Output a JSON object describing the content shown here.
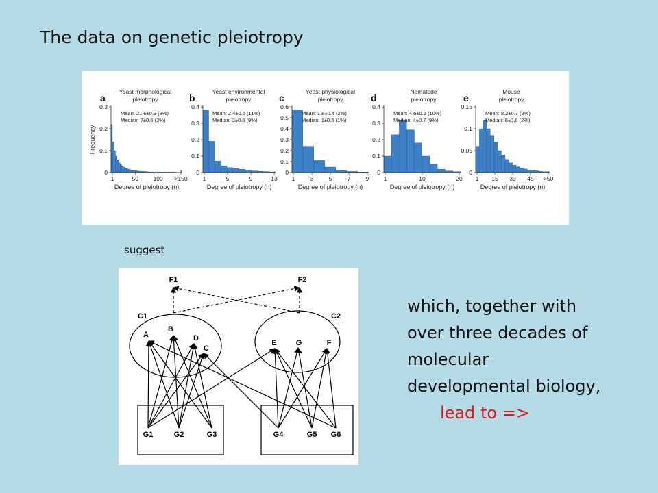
{
  "title": "The data on genetic pleiotropy",
  "suggest": "suggest",
  "body_lines": [
    "which, together with",
    "over three decades of",
    "molecular",
    "developmental biology,"
  ],
  "lead_to": "lead to =>",
  "colors": {
    "background": "#b4dbe6",
    "bar": "#3d80c6",
    "bar_stroke": "#24598f",
    "lead_text": "#e0191e"
  },
  "chart_data": [
    {
      "type": "bar",
      "letter": "a",
      "title": "Yeast morphological pleiotropy",
      "ylabel": "Frequency",
      "xlabel": "Degree of pleiotropy (n)",
      "stats": [
        "Mean: 21.6±0.9 (8%)",
        "Median: 7±0.6 (2%)"
      ],
      "ylim": [
        0,
        0.3
      ],
      "yticks": [
        "0",
        "0.1",
        "0.2",
        "0.3"
      ],
      "xticks": [
        "1",
        "50",
        "100",
        ">150"
      ],
      "values": [
        0.22,
        0.14,
        0.1,
        0.075,
        0.058,
        0.045,
        0.036,
        0.03,
        0.025,
        0.021,
        0.018,
        0.015,
        0.013,
        0.011,
        0.01,
        0.009,
        0.008,
        0.007,
        0.006,
        0.006,
        0.005,
        0.005,
        0.004,
        0.004,
        0.003,
        0.003,
        0.003,
        0.002,
        0.002,
        0.002,
        0.002,
        0.002,
        0.002,
        0.002,
        0.002,
        0.002,
        0.002,
        0.002,
        0.002,
        0.002,
        0.002,
        0.002,
        0.001,
        0.001,
        0.001,
        0.012
      ]
    },
    {
      "type": "bar",
      "letter": "b",
      "title": "Yeast environmental pleiotropy",
      "ylabel": "",
      "xlabel": "Degree of pleiotropy (n)",
      "stats": [
        "Mean: 2.4±0.5 (11%)",
        "Median: 2±0.6 (9%)"
      ],
      "ylim": [
        0,
        0.4
      ],
      "yticks": [
        "0",
        "0.1",
        "0.2",
        "0.3",
        "0.4"
      ],
      "xticks": [
        "1",
        "5",
        "9",
        "13"
      ],
      "values": [
        0.38,
        0.19,
        0.07,
        0.04,
        0.03,
        0.025,
        0.02,
        0.015,
        0.01,
        0.008,
        0.006,
        0.004
      ]
    },
    {
      "type": "bar",
      "letter": "c",
      "title": "Yeast physiological pleiotropy",
      "ylabel": "",
      "xlabel": "Degree of pleiotropy (n)",
      "stats": [
        "Mean: 1.8±0.4 (2%)",
        "Median: 1±0.5 (1%)"
      ],
      "ylim": [
        0,
        0.6
      ],
      "yticks": [
        "0",
        "0.1",
        "0.2",
        "0.3",
        "0.4",
        "0.5",
        "0.6"
      ],
      "xticks": [
        "1",
        "3",
        "5",
        "7",
        "9"
      ],
      "values": [
        0.57,
        0.24,
        0.11,
        0.05,
        0.02,
        0.01,
        0.005
      ]
    },
    {
      "type": "bar",
      "letter": "d",
      "title": "Nematode pleiotropy",
      "ylabel": "",
      "xlabel": "Degree of pleiotropy (n)",
      "stats": [
        "Mean: 4.6±0.6 (10%)",
        "Median: 4±0.7 (9%)"
      ],
      "ylim": [
        0,
        0.4
      ],
      "yticks": [
        "0",
        "0.1",
        "0.2",
        "0.3",
        "0.4"
      ],
      "xticks": [
        "1",
        "10",
        "20"
      ],
      "values": [
        0.1,
        0.23,
        0.32,
        0.26,
        0.18,
        0.1,
        0.05,
        0.02,
        0.01,
        0.005
      ]
    },
    {
      "type": "bar",
      "letter": "e",
      "title": "Mouse pleiotropy",
      "ylabel": "",
      "xlabel": "Degree of pleiotropy (n)",
      "stats": [
        "Mean: 8.2±0.7 (3%)",
        "Median: 6±0.6 (2%)"
      ],
      "ylim": [
        0,
        0.15
      ],
      "yticks": [
        "0",
        "0.05",
        "0.1",
        "0.15"
      ],
      "xticks": [
        "1",
        "15",
        "30",
        "45",
        ">50"
      ],
      "values": [
        0.06,
        0.1,
        0.12,
        0.1,
        0.085,
        0.07,
        0.05,
        0.04,
        0.03,
        0.022,
        0.017,
        0.013,
        0.01,
        0.008,
        0.006,
        0.005,
        0.004,
        0.003,
        0.002,
        0.002
      ]
    }
  ],
  "diagram": {
    "traits": [
      "F1",
      "F2"
    ],
    "clusters": [
      "C1",
      "C2"
    ],
    "nodes": [
      "A",
      "B",
      "D",
      "C",
      "E",
      "G",
      "F"
    ],
    "genes": [
      "G1",
      "G2",
      "G3",
      "G4",
      "G5",
      "G6"
    ]
  }
}
